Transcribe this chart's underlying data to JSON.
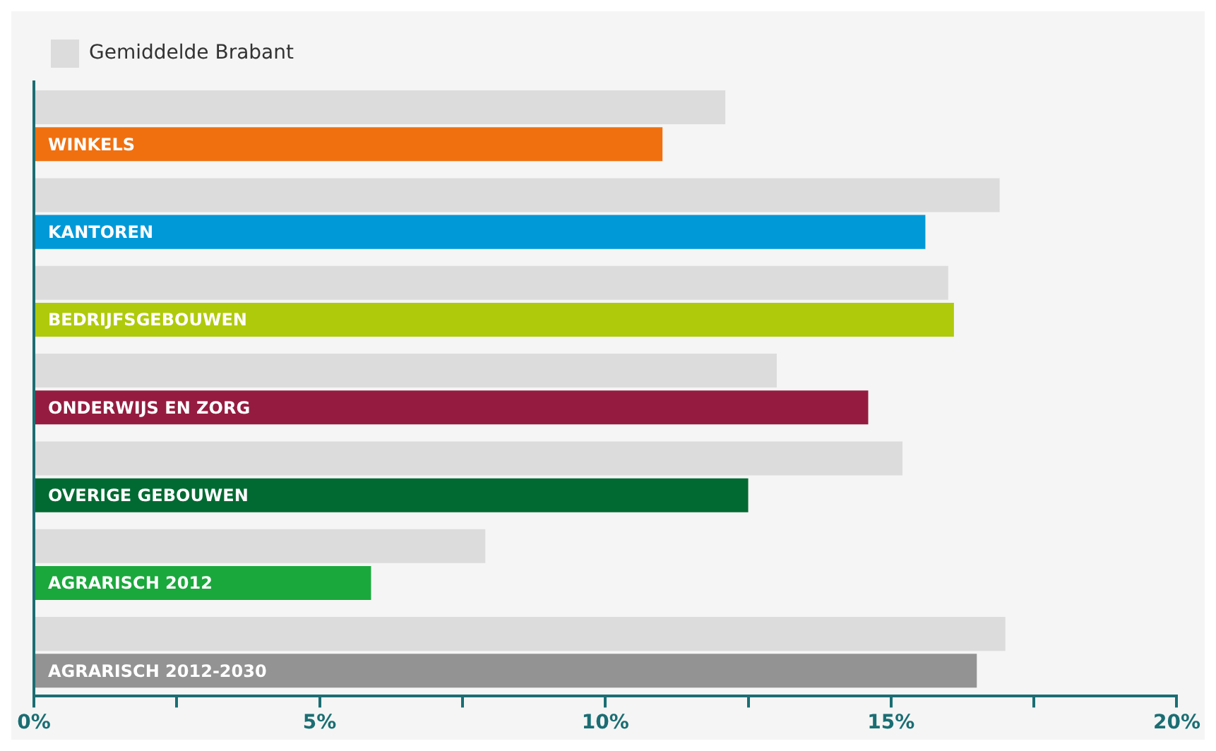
{
  "chart_data": {
    "type": "bar",
    "orientation": "horizontal",
    "categories": [
      "WINKELS",
      "KANTOREN",
      "BEDRIJFSGEBOUWEN",
      "ONDERWIJS EN ZORG",
      "OVERIGE GEBOUWEN",
      "AGRARISCH 2012",
      "AGRARISCH 2012-2030"
    ],
    "series": [
      {
        "name": "Gemiddelde Brabant",
        "color": "#dcdcdc",
        "values": [
          12.1,
          16.9,
          16.0,
          13.0,
          15.2,
          7.9,
          17.0
        ]
      },
      {
        "colors": [
          "#f07010",
          "#0099d8",
          "#afca0b",
          "#951c40",
          "#006a32",
          "#1aa83c",
          "#939393"
        ],
        "values": [
          11.0,
          15.6,
          16.1,
          14.6,
          12.5,
          5.9,
          16.5
        ]
      }
    ],
    "xlim": [
      0,
      20
    ],
    "xticks": [
      {
        "value": 0,
        "label": "0%"
      },
      {
        "value": 2.5,
        "label": null
      },
      {
        "value": 5,
        "label": "5%"
      },
      {
        "value": 7.5,
        "label": null
      },
      {
        "value": 10,
        "label": "10%"
      },
      {
        "value": 12.5,
        "label": null
      },
      {
        "value": 15,
        "label": "15%"
      },
      {
        "value": 17.5,
        "label": null
      },
      {
        "value": 20,
        "label": "20%"
      }
    ],
    "legend": "top left"
  }
}
